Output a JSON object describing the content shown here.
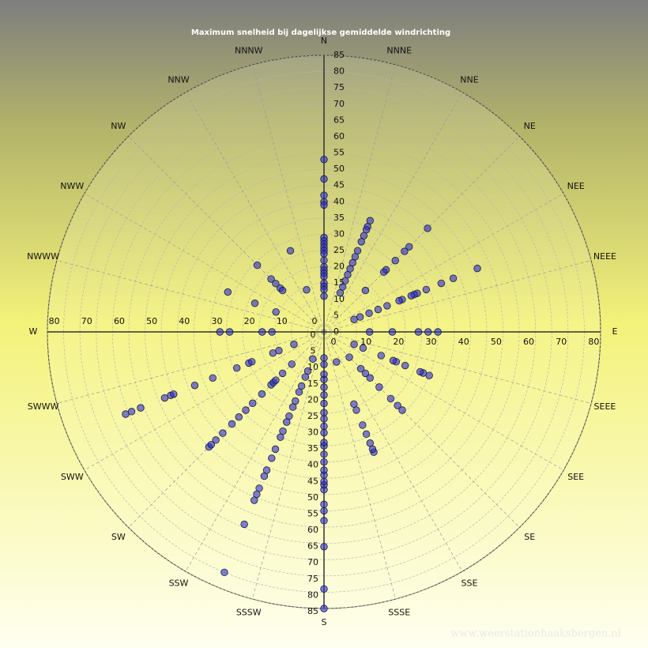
{
  "chart_data": {
    "type": "polar-scatter",
    "title": "Maximum  snelheid  bij  dagelijkse  gemiddelde  windrichting",
    "watermark": "www.weerstationhaaksbergen.nl",
    "directions": [
      "N",
      "NNNE",
      "NNE",
      "NE",
      "NEE",
      "NEEE",
      "E",
      "SEEE",
      "SEE",
      "SE",
      "SSE",
      "SSSE",
      "S",
      "SSSW",
      "SSW",
      "SW",
      "SWW",
      "SWWW",
      "W",
      "NWWW",
      "NWW",
      "NW",
      "NNW",
      "NNNW"
    ],
    "rlim": [
      0,
      85
    ],
    "rticks": [
      0,
      5,
      10,
      15,
      20,
      25,
      30,
      35,
      40,
      45,
      50,
      55,
      60,
      65,
      70,
      75,
      80,
      85
    ],
    "hticks": [
      0,
      10,
      20,
      30,
      40,
      50,
      60,
      70,
      80
    ],
    "color": "#2a2ad0",
    "groups": [
      {
        "theta": 0,
        "values": [
          53,
          47,
          42,
          40,
          39,
          29,
          28,
          27,
          26,
          25,
          24,
          22,
          20,
          19,
          18,
          17,
          15,
          14,
          13,
          11
        ]
      },
      {
        "theta": 22.5,
        "values": [
          37,
          35,
          34,
          32,
          30,
          27,
          25,
          23,
          21,
          19,
          17,
          15,
          13
        ]
      },
      {
        "theta": 45,
        "values": [
          45,
          37,
          35,
          31,
          27,
          26,
          18
        ]
      },
      {
        "theta": 67.5,
        "values": [
          51,
          43,
          39,
          34,
          31,
          30,
          29,
          26,
          25,
          21,
          18,
          15,
          12,
          10
        ]
      },
      {
        "theta": 90,
        "values": [
          35,
          32,
          29,
          21,
          14
        ]
      },
      {
        "theta": 112.5,
        "values": [
          35,
          33,
          32,
          27,
          24,
          23,
          19,
          13,
          10
        ]
      },
      {
        "theta": 135,
        "values": [
          34,
          32,
          29,
          24,
          20,
          18,
          16,
          11
        ]
      },
      {
        "theta": 157.5,
        "values": [
          40,
          39,
          37,
          34,
          31,
          26,
          24,
          10
        ]
      },
      {
        "theta": 180,
        "values": [
          85,
          79,
          66,
          58,
          55,
          53,
          48.5,
          47,
          46,
          44,
          42.5,
          40,
          37.6,
          35,
          34,
          31,
          29,
          26.7,
          24.8,
          22,
          19.4,
          17,
          14.6,
          13,
          10,
          8
        ]
      },
      {
        "theta": 202.5,
        "values": [
          80,
          64,
          56,
          54,
          52,
          48,
          46,
          42,
          39,
          35,
          33,
          30,
          28,
          25,
          23,
          20,
          18,
          15,
          13,
          9
        ]
      },
      {
        "theta": 225,
        "values": [
          50,
          49,
          47,
          44,
          40,
          37,
          34,
          31,
          27,
          23,
          22,
          21,
          18,
          14
        ]
      },
      {
        "theta": 247.5,
        "values": [
          66,
          64,
          61,
          53,
          51,
          50,
          43,
          37,
          29,
          25,
          24,
          17,
          15,
          10
        ]
      },
      {
        "theta": 270,
        "values": [
          32,
          29,
          19,
          16
        ]
      },
      {
        "theta": 292.5,
        "values": [
          32,
          23,
          16
        ]
      },
      {
        "theta": 315,
        "values": [
          29,
          23,
          21,
          19,
          18
        ]
      },
      {
        "theta": 337.5,
        "values": [
          27,
          14
        ]
      }
    ]
  }
}
